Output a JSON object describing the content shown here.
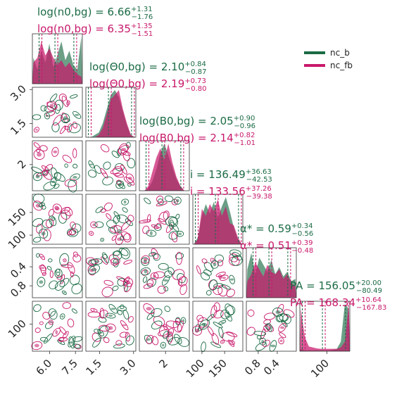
{
  "chart_data": {
    "type": "corner",
    "legend": {
      "placement": "top-right",
      "entries": [
        {
          "name": "nc_b",
          "color": "#1b6b45"
        },
        {
          "name": "nc_fb",
          "color": "#c8186b"
        }
      ]
    },
    "parameters": [
      "log(n_{0,bg})",
      "log(Θ_{0,bg})",
      "log(B_{0,bg})",
      "i",
      "α_*",
      "PA"
    ],
    "titles": {
      "nc_b": [
        {
          "label": "log(n0,bg) = 6.66",
          "sup": "+1.31",
          "sub": "−1.76"
        },
        {
          "label": "log(Θ0,bg) = 2.10",
          "sup": "+0.84",
          "sub": "−0.87"
        },
        {
          "label": "log(B0,bg) = 2.05",
          "sup": "+0.90",
          "sub": "−0.96"
        },
        {
          "label": "i = 136.49",
          "sup": "+36.63",
          "sub": "−42.53"
        },
        {
          "label": "α* = 0.59",
          "sup": "+0.34",
          "sub": "−0.56"
        },
        {
          "label": "PA = 156.05",
          "sup": "+20.00",
          "sub": "−80.49"
        }
      ],
      "nc_fb": [
        {
          "label": "log(n0,bg) = 6.35",
          "sup": "+1.35",
          "sub": "−1.51"
        },
        {
          "label": "log(Θ0,bg) = 2.19",
          "sup": "+0.73",
          "sub": "−0.80"
        },
        {
          "label": "log(B0,bg) = 2.14",
          "sup": "+0.82",
          "sub": "−1.01"
        },
        {
          "label": "i = 133.56",
          "sup": "+37.26",
          "sub": "−39.38"
        },
        {
          "label": "α* = 0.51",
          "sup": "+0.39",
          "sub": "−0.48"
        },
        {
          "label": "PA = 168.34",
          "sup": "+10.64",
          "sub": "−167.83"
        }
      ]
    },
    "axes": {
      "log_n0bg": {
        "range": [
          5.0,
          7.9
        ],
        "ticks": [
          6.0,
          7.5
        ],
        "tick_labels": [
          "6.0",
          "7.5"
        ]
      },
      "log_theta0bg": {
        "range": [
          0.9,
          3.1
        ],
        "ticks": [
          1.5,
          3.0
        ],
        "tick_labels": [
          "1.5",
          "3.0"
        ]
      },
      "log_B0bg": {
        "range": [
          0.9,
          3.0
        ],
        "ticks": [
          2
        ],
        "tick_labels": [
          "2"
        ]
      },
      "i": {
        "range": [
          80,
          190
        ],
        "ticks": [
          100,
          150
        ],
        "tick_labels": [
          "100",
          "150"
        ]
      },
      "alpha": {
        "range": [
          1.05,
          0.0
        ],
        "ticks": [
          0.8,
          0.4
        ],
        "tick_labels": [
          "0.8",
          "0.4"
        ],
        "inverted": true
      },
      "PA": {
        "range": [
          0,
          185
        ],
        "ticks": [
          100
        ],
        "tick_labels": [
          "100"
        ]
      }
    },
    "grid": false,
    "marginal_histograms": {
      "x_frac": [
        0.02,
        0.1,
        0.18,
        0.26,
        0.34,
        0.42,
        0.5,
        0.58,
        0.66,
        0.74,
        0.82,
        0.9,
        0.98
      ],
      "nc_b": [
        [
          0.55,
          0.3,
          0.7,
          0.45,
          0.85,
          0.35,
          0.6,
          0.9,
          0.5,
          0.7,
          0.4,
          0.3,
          1.0
        ],
        [
          0.0,
          0.0,
          0.05,
          0.1,
          0.3,
          0.6,
          0.9,
          1.0,
          0.85,
          0.55,
          0.25,
          0.05,
          0.0
        ],
        [
          0.0,
          0.0,
          0.05,
          0.2,
          0.45,
          0.8,
          1.0,
          0.75,
          0.5,
          0.25,
          0.1,
          0.0,
          0.0
        ],
        [
          0.0,
          0.15,
          0.6,
          0.85,
          0.65,
          0.9,
          0.55,
          0.8,
          1.0,
          0.7,
          0.35,
          0.1,
          0.0
        ],
        [
          0.6,
          0.95,
          0.5,
          0.85,
          0.7,
          0.55,
          0.8,
          0.5,
          0.65,
          0.45,
          0.55,
          0.35,
          0.4
        ],
        [
          0.05,
          0.02,
          0.02,
          0.02,
          0.02,
          0.02,
          0.02,
          0.02,
          0.03,
          0.05,
          0.2,
          1.0,
          0.9
        ]
      ],
      "nc_fb": [
        [
          0.45,
          0.55,
          0.9,
          0.6,
          0.75,
          0.55,
          0.4,
          0.5,
          0.35,
          0.45,
          0.3,
          0.2,
          0.15
        ],
        [
          0.0,
          0.0,
          0.0,
          0.05,
          0.2,
          0.5,
          0.8,
          0.9,
          1.0,
          0.6,
          0.3,
          0.05,
          0.0
        ],
        [
          0.0,
          0.0,
          0.1,
          0.4,
          0.7,
          0.9,
          0.65,
          1.0,
          0.6,
          0.3,
          0.1,
          0.0,
          0.0
        ],
        [
          0.0,
          0.1,
          0.75,
          0.6,
          0.85,
          0.7,
          0.95,
          0.6,
          0.8,
          0.45,
          0.4,
          0.15,
          0.0
        ],
        [
          0.35,
          0.5,
          0.75,
          0.6,
          0.45,
          0.7,
          0.55,
          0.5,
          0.6,
          0.4,
          0.5,
          0.3,
          0.25
        ],
        [
          0.9,
          0.3,
          0.1,
          0.08,
          0.06,
          0.05,
          0.05,
          0.05,
          0.05,
          0.05,
          0.08,
          0.2,
          1.0
        ]
      ]
    }
  }
}
